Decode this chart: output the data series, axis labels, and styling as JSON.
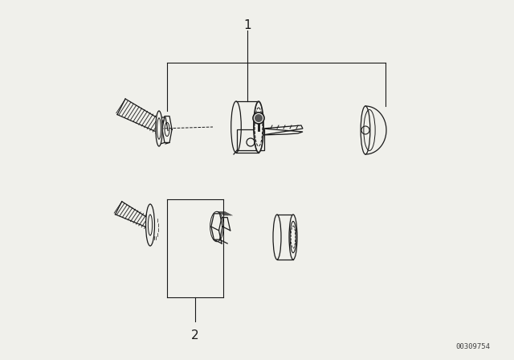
{
  "background_color": "#f0f0eb",
  "part_number_label": "00309754",
  "label1": "1",
  "label2": "2",
  "fig_width": 6.4,
  "fig_height": 4.48,
  "dpi": 100,
  "line_color": "#1a1a1a",
  "lw": 0.9
}
